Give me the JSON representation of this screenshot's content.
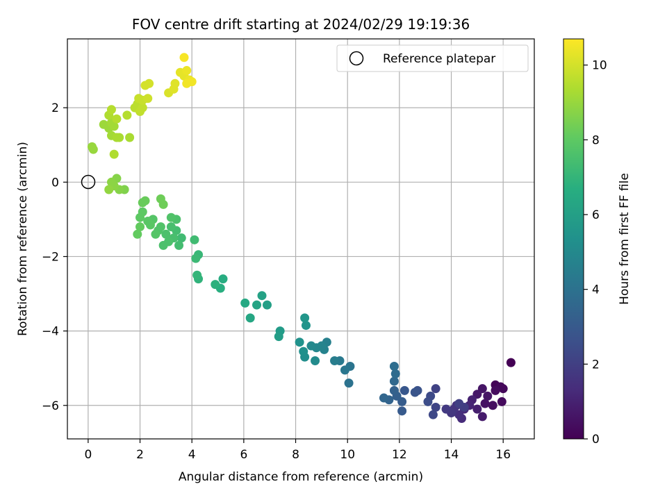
{
  "chart_data": {
    "type": "scatter",
    "title": "FOV centre drift starting at 2024/02/29 19:19:36",
    "xlabel": "Angular distance from reference (arcmin)",
    "ylabel": "Rotation from reference (arcmin)",
    "xlim": [
      -0.8,
      17.2
    ],
    "ylim": [
      -6.9,
      3.85
    ],
    "xticks": [
      0,
      2,
      4,
      6,
      8,
      10,
      12,
      14,
      16
    ],
    "yticks": [
      -6,
      -4,
      -2,
      0,
      2
    ],
    "grid": true,
    "legend": {
      "position": "top-right",
      "entries": [
        "Reference platepar"
      ]
    },
    "reference_point": {
      "x": 0,
      "y": 0,
      "label": "Reference platepar"
    },
    "colorbar": {
      "label": "Hours from first FF file",
      "range": [
        0,
        10.7
      ],
      "ticks": [
        0,
        2,
        4,
        6,
        8,
        10
      ],
      "colormap": "viridis"
    },
    "points": [
      {
        "x": 16.3,
        "y": -4.85,
        "t": 0.0
      },
      {
        "x": 15.7,
        "y": -5.45,
        "t": 0.1
      },
      {
        "x": 15.9,
        "y": -5.5,
        "t": 0.2
      },
      {
        "x": 16.0,
        "y": -5.55,
        "t": 0.2
      },
      {
        "x": 15.7,
        "y": -5.6,
        "t": 0.3
      },
      {
        "x": 15.95,
        "y": -5.9,
        "t": 0.3
      },
      {
        "x": 15.6,
        "y": -6.0,
        "t": 0.4
      },
      {
        "x": 15.3,
        "y": -5.95,
        "t": 0.5
      },
      {
        "x": 15.2,
        "y": -5.55,
        "t": 0.6
      },
      {
        "x": 15.4,
        "y": -5.75,
        "t": 0.6
      },
      {
        "x": 15.0,
        "y": -5.7,
        "t": 0.7
      },
      {
        "x": 15.2,
        "y": -6.3,
        "t": 0.8
      },
      {
        "x": 15.0,
        "y": -6.1,
        "t": 0.9
      },
      {
        "x": 14.8,
        "y": -5.85,
        "t": 1.0
      },
      {
        "x": 14.7,
        "y": -6.0,
        "t": 1.1
      },
      {
        "x": 14.5,
        "y": -6.1,
        "t": 1.2
      },
      {
        "x": 14.4,
        "y": -6.35,
        "t": 1.3
      },
      {
        "x": 14.3,
        "y": -6.25,
        "t": 1.4
      },
      {
        "x": 14.2,
        "y": -6.0,
        "t": 1.5
      },
      {
        "x": 14.1,
        "y": -6.1,
        "t": 1.6
      },
      {
        "x": 14.0,
        "y": -6.2,
        "t": 1.7
      },
      {
        "x": 13.8,
        "y": -6.1,
        "t": 1.8
      },
      {
        "x": 14.5,
        "y": -6.05,
        "t": 1.9
      },
      {
        "x": 14.3,
        "y": -5.95,
        "t": 2.0
      },
      {
        "x": 13.4,
        "y": -5.55,
        "t": 2.1
      },
      {
        "x": 13.4,
        "y": -6.05,
        "t": 2.2
      },
      {
        "x": 13.3,
        "y": -6.25,
        "t": 2.3
      },
      {
        "x": 13.2,
        "y": -5.75,
        "t": 2.4
      },
      {
        "x": 13.1,
        "y": -5.9,
        "t": 2.5
      },
      {
        "x": 12.7,
        "y": -5.6,
        "t": 2.7
      },
      {
        "x": 12.6,
        "y": -5.65,
        "t": 2.8
      },
      {
        "x": 12.2,
        "y": -5.6,
        "t": 2.9
      },
      {
        "x": 12.1,
        "y": -6.15,
        "t": 3.0
      },
      {
        "x": 12.1,
        "y": -5.9,
        "t": 3.1
      },
      {
        "x": 11.9,
        "y": -5.75,
        "t": 3.2
      },
      {
        "x": 11.8,
        "y": -5.6,
        "t": 3.3
      },
      {
        "x": 11.6,
        "y": -5.85,
        "t": 3.4
      },
      {
        "x": 11.4,
        "y": -5.8,
        "t": 3.5
      },
      {
        "x": 11.8,
        "y": -5.35,
        "t": 3.6
      },
      {
        "x": 11.85,
        "y": -5.15,
        "t": 3.7
      },
      {
        "x": 11.8,
        "y": -4.95,
        "t": 3.8
      },
      {
        "x": 10.05,
        "y": -5.4,
        "t": 4.0
      },
      {
        "x": 10.1,
        "y": -4.95,
        "t": 4.1
      },
      {
        "x": 9.9,
        "y": -5.05,
        "t": 4.2
      },
      {
        "x": 9.7,
        "y": -4.8,
        "t": 4.3
      },
      {
        "x": 9.5,
        "y": -4.8,
        "t": 4.5
      },
      {
        "x": 9.2,
        "y": -4.3,
        "t": 4.6
      },
      {
        "x": 9.1,
        "y": -4.5,
        "t": 4.7
      },
      {
        "x": 9.0,
        "y": -4.4,
        "t": 4.8
      },
      {
        "x": 8.8,
        "y": -4.45,
        "t": 4.9
      },
      {
        "x": 8.6,
        "y": -4.4,
        "t": 5.0
      },
      {
        "x": 8.75,
        "y": -4.8,
        "t": 5.1
      },
      {
        "x": 8.35,
        "y": -4.7,
        "t": 5.2
      },
      {
        "x": 8.3,
        "y": -4.55,
        "t": 5.3
      },
      {
        "x": 8.15,
        "y": -4.3,
        "t": 5.4
      },
      {
        "x": 8.4,
        "y": -3.85,
        "t": 5.5
      },
      {
        "x": 8.35,
        "y": -3.65,
        "t": 5.6
      },
      {
        "x": 7.4,
        "y": -4.0,
        "t": 5.8
      },
      {
        "x": 7.35,
        "y": -4.15,
        "t": 5.9
      },
      {
        "x": 6.9,
        "y": -3.3,
        "t": 6.0
      },
      {
        "x": 6.7,
        "y": -3.05,
        "t": 6.1
      },
      {
        "x": 6.5,
        "y": -3.3,
        "t": 6.2
      },
      {
        "x": 6.25,
        "y": -3.65,
        "t": 6.3
      },
      {
        "x": 6.05,
        "y": -3.25,
        "t": 6.4
      },
      {
        "x": 5.2,
        "y": -2.6,
        "t": 6.6
      },
      {
        "x": 5.1,
        "y": -2.85,
        "t": 6.7
      },
      {
        "x": 4.9,
        "y": -2.75,
        "t": 6.8
      },
      {
        "x": 4.25,
        "y": -2.6,
        "t": 6.9
      },
      {
        "x": 4.2,
        "y": -2.5,
        "t": 7.0
      },
      {
        "x": 4.25,
        "y": -1.95,
        "t": 7.1
      },
      {
        "x": 4.15,
        "y": -2.05,
        "t": 7.2
      },
      {
        "x": 4.1,
        "y": -1.55,
        "t": 7.3
      },
      {
        "x": 3.6,
        "y": -1.5,
        "t": 7.3
      },
      {
        "x": 3.5,
        "y": -1.7,
        "t": 7.4
      },
      {
        "x": 3.4,
        "y": -1.3,
        "t": 7.4
      },
      {
        "x": 3.3,
        "y": -1.5,
        "t": 7.5
      },
      {
        "x": 3.2,
        "y": -1.2,
        "t": 7.5
      },
      {
        "x": 3.1,
        "y": -1.6,
        "t": 7.6
      },
      {
        "x": 3.0,
        "y": -1.4,
        "t": 7.6
      },
      {
        "x": 2.9,
        "y": -1.7,
        "t": 7.6
      },
      {
        "x": 2.8,
        "y": -1.2,
        "t": 7.7
      },
      {
        "x": 2.7,
        "y": -1.3,
        "t": 7.7
      },
      {
        "x": 2.6,
        "y": -1.4,
        "t": 7.8
      },
      {
        "x": 2.5,
        "y": -1.0,
        "t": 7.8
      },
      {
        "x": 2.4,
        "y": -1.15,
        "t": 7.9
      },
      {
        "x": 2.3,
        "y": -1.05,
        "t": 7.9
      },
      {
        "x": 2.1,
        "y": -0.8,
        "t": 8.0
      },
      {
        "x": 2.0,
        "y": -0.95,
        "t": 8.0
      },
      {
        "x": 1.9,
        "y": -1.4,
        "t": 8.1
      },
      {
        "x": 2.0,
        "y": -1.2,
        "t": 8.1
      },
      {
        "x": 2.1,
        "y": -0.55,
        "t": 8.2
      },
      {
        "x": 2.2,
        "y": -0.5,
        "t": 8.2
      },
      {
        "x": 2.8,
        "y": -0.45,
        "t": 8.3
      },
      {
        "x": 2.9,
        "y": -0.6,
        "t": 8.3
      },
      {
        "x": 3.4,
        "y": -1.0,
        "t": 7.6
      },
      {
        "x": 3.2,
        "y": -0.95,
        "t": 7.7
      },
      {
        "x": 1.4,
        "y": -0.2,
        "t": 8.6
      },
      {
        "x": 1.2,
        "y": -0.2,
        "t": 8.7
      },
      {
        "x": 1.1,
        "y": 0.1,
        "t": 8.7
      },
      {
        "x": 1.0,
        "y": -0.1,
        "t": 8.8
      },
      {
        "x": 0.9,
        "y": 0.0,
        "t": 8.8
      },
      {
        "x": 0.8,
        "y": -0.2,
        "t": 8.9
      },
      {
        "x": 0.15,
        "y": 0.95,
        "t": 9.0
      },
      {
        "x": 0.2,
        "y": 0.88,
        "t": 9.0
      },
      {
        "x": 0.6,
        "y": 1.55,
        "t": 9.1
      },
      {
        "x": 0.8,
        "y": 1.45,
        "t": 9.1
      },
      {
        "x": 0.9,
        "y": 1.6,
        "t": 9.2
      },
      {
        "x": 1.0,
        "y": 1.5,
        "t": 9.2
      },
      {
        "x": 0.9,
        "y": 1.25,
        "t": 9.2
      },
      {
        "x": 1.1,
        "y": 1.2,
        "t": 9.3
      },
      {
        "x": 1.2,
        "y": 1.2,
        "t": 9.3
      },
      {
        "x": 1.6,
        "y": 1.2,
        "t": 9.3
      },
      {
        "x": 1.0,
        "y": 0.75,
        "t": 9.4
      },
      {
        "x": 0.8,
        "y": 1.8,
        "t": 9.4
      },
      {
        "x": 0.9,
        "y": 1.95,
        "t": 9.5
      },
      {
        "x": 1.1,
        "y": 1.7,
        "t": 9.5
      },
      {
        "x": 1.5,
        "y": 1.8,
        "t": 9.5
      },
      {
        "x": 1.8,
        "y": 2.0,
        "t": 9.6
      },
      {
        "x": 1.9,
        "y": 2.1,
        "t": 9.6
      },
      {
        "x": 2.0,
        "y": 1.9,
        "t": 9.7
      },
      {
        "x": 2.1,
        "y": 2.0,
        "t": 9.7
      },
      {
        "x": 1.95,
        "y": 2.25,
        "t": 9.8
      },
      {
        "x": 2.1,
        "y": 2.2,
        "t": 9.8
      },
      {
        "x": 2.3,
        "y": 2.25,
        "t": 9.9
      },
      {
        "x": 2.2,
        "y": 2.6,
        "t": 10.0
      },
      {
        "x": 2.35,
        "y": 2.65,
        "t": 10.0
      },
      {
        "x": 3.1,
        "y": 2.4,
        "t": 10.1
      },
      {
        "x": 3.3,
        "y": 2.5,
        "t": 10.2
      },
      {
        "x": 3.35,
        "y": 2.65,
        "t": 10.2
      },
      {
        "x": 3.55,
        "y": 2.95,
        "t": 10.3
      },
      {
        "x": 3.7,
        "y": 2.85,
        "t": 10.3
      },
      {
        "x": 3.8,
        "y": 3.0,
        "t": 10.4
      },
      {
        "x": 3.9,
        "y": 2.75,
        "t": 10.4
      },
      {
        "x": 4.0,
        "y": 2.7,
        "t": 10.5
      },
      {
        "x": 3.8,
        "y": 2.65,
        "t": 10.5
      },
      {
        "x": 3.7,
        "y": 3.35,
        "t": 10.6
      }
    ]
  }
}
